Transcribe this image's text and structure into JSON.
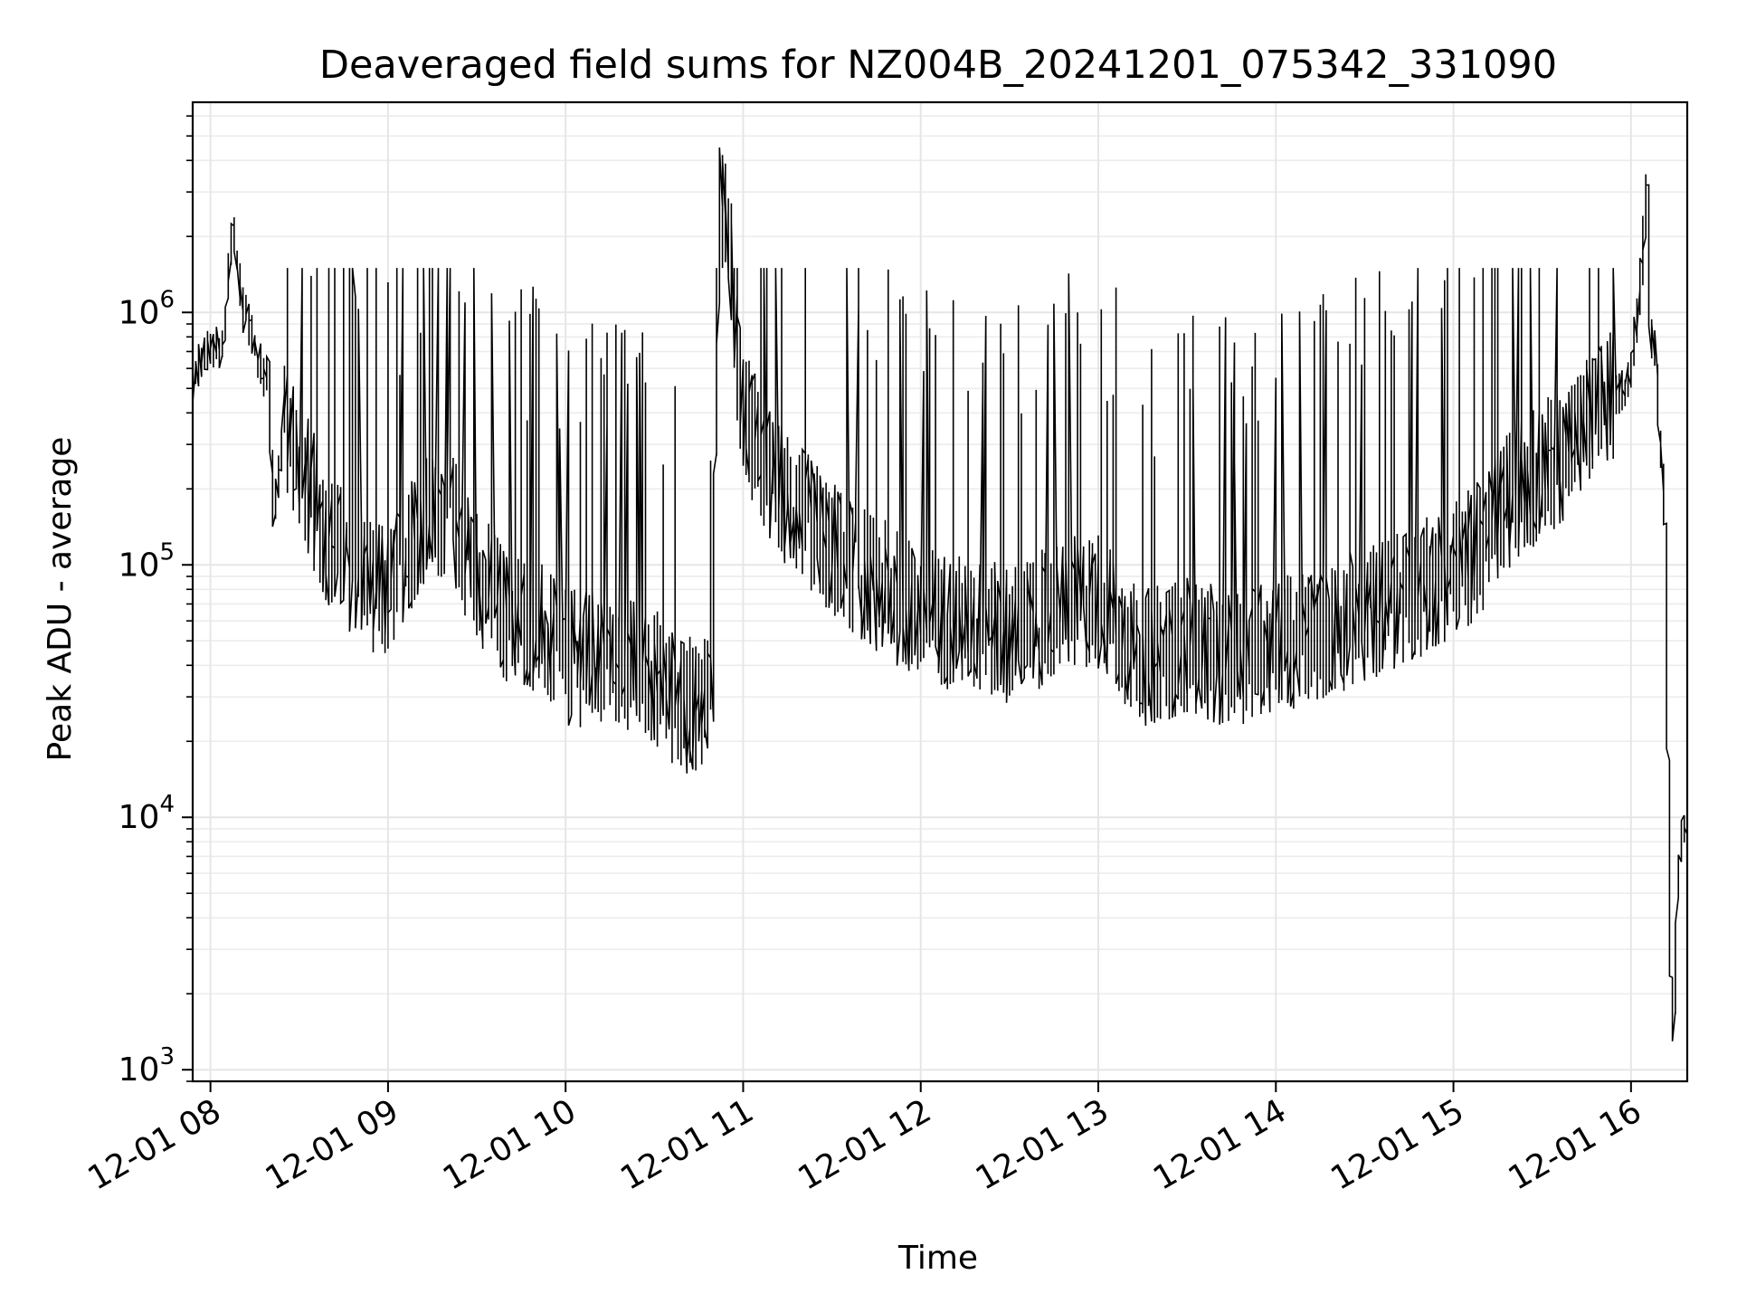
{
  "chart_data": {
    "type": "line",
    "title": "Deaveraged field sums for NZ004B_20241201_075342_331090",
    "xlabel": "Time",
    "ylabel": "Peak ADU - average",
    "xscale": "time",
    "yscale": "log",
    "xlim": [
      "2024-12-01T07:54",
      "2024-12-01T16:19"
    ],
    "ylim": [
      900,
      6800000
    ],
    "grid": true,
    "line_color": "#000000",
    "x_ticks": [
      {
        "value": "2024-12-01T08:00",
        "label": "12-01 08"
      },
      {
        "value": "2024-12-01T09:00",
        "label": "12-01 09"
      },
      {
        "value": "2024-12-01T10:00",
        "label": "12-01 10"
      },
      {
        "value": "2024-12-01T11:00",
        "label": "12-01 11"
      },
      {
        "value": "2024-12-01T12:00",
        "label": "12-01 12"
      },
      {
        "value": "2024-12-01T13:00",
        "label": "12-01 13"
      },
      {
        "value": "2024-12-01T14:00",
        "label": "12-01 14"
      },
      {
        "value": "2024-12-01T15:00",
        "label": "12-01 15"
      },
      {
        "value": "2024-12-01T16:00",
        "label": "12-01 16"
      }
    ],
    "y_ticks": [
      {
        "value": 1000,
        "base": "10",
        "exp": "3"
      },
      {
        "value": 10000,
        "base": "10",
        "exp": "4"
      },
      {
        "value": 100000,
        "base": "10",
        "exp": "5"
      },
      {
        "value": 1000000,
        "base": "10",
        "exp": "6"
      }
    ],
    "series": [
      {
        "points": [
          [
            "2024-12-01T07:54",
            450000
          ],
          [
            "2024-12-01T07:57",
            650000
          ],
          [
            "2024-12-01T08:00",
            700000
          ],
          [
            "2024-12-01T08:05",
            750000
          ],
          [
            "2024-12-01T08:08",
            2200000
          ],
          [
            "2024-12-01T08:11",
            1100000
          ],
          [
            "2024-12-01T08:15",
            800000
          ],
          [
            "2024-12-01T08:18",
            550000
          ],
          [
            "2024-12-01T08:20",
            600000
          ],
          [
            "2024-12-01T08:22",
            150000
          ],
          [
            "2024-12-01T08:25",
            350000
          ],
          [
            "2024-12-01T08:30",
            250000
          ],
          [
            "2024-12-01T08:35",
            170000
          ],
          [
            "2024-12-01T08:40",
            120000
          ],
          [
            "2024-12-01T08:50",
            90000
          ],
          [
            "2024-12-01T09:00",
            70000
          ],
          [
            "2024-12-01T09:10",
            130000
          ],
          [
            "2024-12-01T09:20",
            160000
          ],
          [
            "2024-12-01T09:30",
            90000
          ],
          [
            "2024-12-01T09:40",
            60000
          ],
          [
            "2024-12-01T09:50",
            55000
          ],
          [
            "2024-12-01T10:00",
            40000
          ],
          [
            "2024-12-01T10:15",
            40000
          ],
          [
            "2024-12-01T10:30",
            35000
          ],
          [
            "2024-12-01T10:40",
            25000
          ],
          [
            "2024-12-01T10:50",
            30000
          ],
          [
            "2024-12-01T10:53",
            4500000
          ],
          [
            "2024-12-01T11:00",
            400000
          ],
          [
            "2024-12-01T11:10",
            200000
          ],
          [
            "2024-12-01T11:20",
            150000
          ],
          [
            "2024-12-01T11:30",
            110000
          ],
          [
            "2024-12-01T11:45",
            80000
          ],
          [
            "2024-12-01T12:00",
            60000
          ],
          [
            "2024-12-01T12:15",
            55000
          ],
          [
            "2024-12-01T12:30",
            50000
          ],
          [
            "2024-12-01T12:45",
            60000
          ],
          [
            "2024-12-01T13:00",
            70000
          ],
          [
            "2024-12-01T13:15",
            40000
          ],
          [
            "2024-12-01T13:30",
            45000
          ],
          [
            "2024-12-01T13:45",
            40000
          ],
          [
            "2024-12-01T14:00",
            45000
          ],
          [
            "2024-12-01T14:15",
            50000
          ],
          [
            "2024-12-01T14:30",
            60000
          ],
          [
            "2024-12-01T14:45",
            70000
          ],
          [
            "2024-12-01T15:00",
            90000
          ],
          [
            "2024-12-01T15:10",
            110000
          ],
          [
            "2024-12-01T15:15",
            140000
          ],
          [
            "2024-12-01T15:20",
            180000
          ],
          [
            "2024-12-01T15:30",
            220000
          ],
          [
            "2024-12-01T15:40",
            280000
          ],
          [
            "2024-12-01T15:50",
            380000
          ],
          [
            "2024-12-01T16:00",
            550000
          ],
          [
            "2024-12-01T16:03",
            1000000
          ],
          [
            "2024-12-01T16:06",
            3200000
          ],
          [
            "2024-12-01T16:07",
            800000
          ],
          [
            "2024-12-01T16:09",
            700000
          ],
          [
            "2024-12-01T16:10",
            350000
          ],
          [
            "2024-12-01T16:11",
            250000
          ],
          [
            "2024-12-01T16:12",
            150000
          ],
          [
            "2024-12-01T16:13",
            15000
          ],
          [
            "2024-12-01T16:14",
            2300
          ],
          [
            "2024-12-01T16:15",
            1400
          ],
          [
            "2024-12-01T16:16",
            5000
          ],
          [
            "2024-12-01T16:17",
            7000
          ],
          [
            "2024-12-01T16:18",
            9000
          ],
          [
            "2024-12-01T16:19",
            8500
          ]
        ]
      }
    ]
  }
}
